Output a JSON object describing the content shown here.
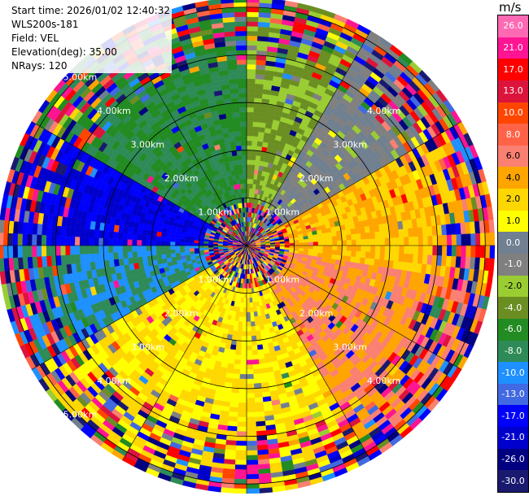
{
  "info": {
    "start_time": "Start time: 2026/01/02 12:40:32",
    "instrument": "WLS200s-181",
    "field": "Field: VEL",
    "elevation": "Elevation(deg): 35.00",
    "nrays": "NRays: 120"
  },
  "colorbar": {
    "unit": "m/s",
    "ticks": [
      "26.0",
      "21.0",
      "17.0",
      "13.0",
      "10.0",
      "8.0",
      "6.0",
      "4.0",
      "2.0",
      "1.0",
      "0.0",
      "-1.0",
      "-2.0",
      "-4.0",
      "-6.0",
      "-8.0",
      "-10.0",
      "-13.0",
      "-17.0",
      "-21.0",
      "-26.0",
      "-30.0"
    ],
    "colors": [
      "#ff69b4",
      "#ff1493",
      "#ff0000",
      "#dc143c",
      "#ff4500",
      "#ff6347",
      "#fa8072",
      "#ffa500",
      "#ffd700",
      "#ffff00",
      "#708090",
      "#808080",
      "#9acd32",
      "#6b8e23",
      "#228b22",
      "#2e8b57",
      "#1e90ff",
      "#4169e1",
      "#0000ff",
      "#0000cd",
      "#000080",
      "#191970"
    ]
  },
  "chart_data": {
    "type": "heatmap",
    "projection": "polar (PPI)",
    "field": "VEL",
    "units": "m/s",
    "nrays": 120,
    "max_range_km": 5.2,
    "range_rings_km": [
      1,
      2,
      3,
      4,
      5
    ],
    "ring_labels": [
      "1.00km",
      "2.00km",
      "3.00km",
      "4.00km",
      "5.00km"
    ],
    "color_min": -30.0,
    "color_max": 26.0,
    "sectors": [
      {
        "azimuth_deg": [
          300,
          360
        ],
        "dominant_ms": -6.0
      },
      {
        "azimuth_deg": [
          0,
          30
        ],
        "dominant_ms": -2.0
      },
      {
        "azimuth_deg": [
          30,
          60
        ],
        "dominant_ms": 0.0
      },
      {
        "azimuth_deg": [
          60,
          100
        ],
        "dominant_ms": 4.0
      },
      {
        "azimuth_deg": [
          100,
          150
        ],
        "dominant_ms": 6.0
      },
      {
        "azimuth_deg": [
          150,
          240
        ],
        "dominant_ms": 2.0
      },
      {
        "azimuth_deg": [
          240,
          270
        ],
        "dominant_ms": -8.0
      },
      {
        "azimuth_deg": [
          270,
          300
        ],
        "dominant_ms": -17.0
      }
    ],
    "noise_beyond_km": 3.8,
    "noise_within_km": 0.9
  }
}
